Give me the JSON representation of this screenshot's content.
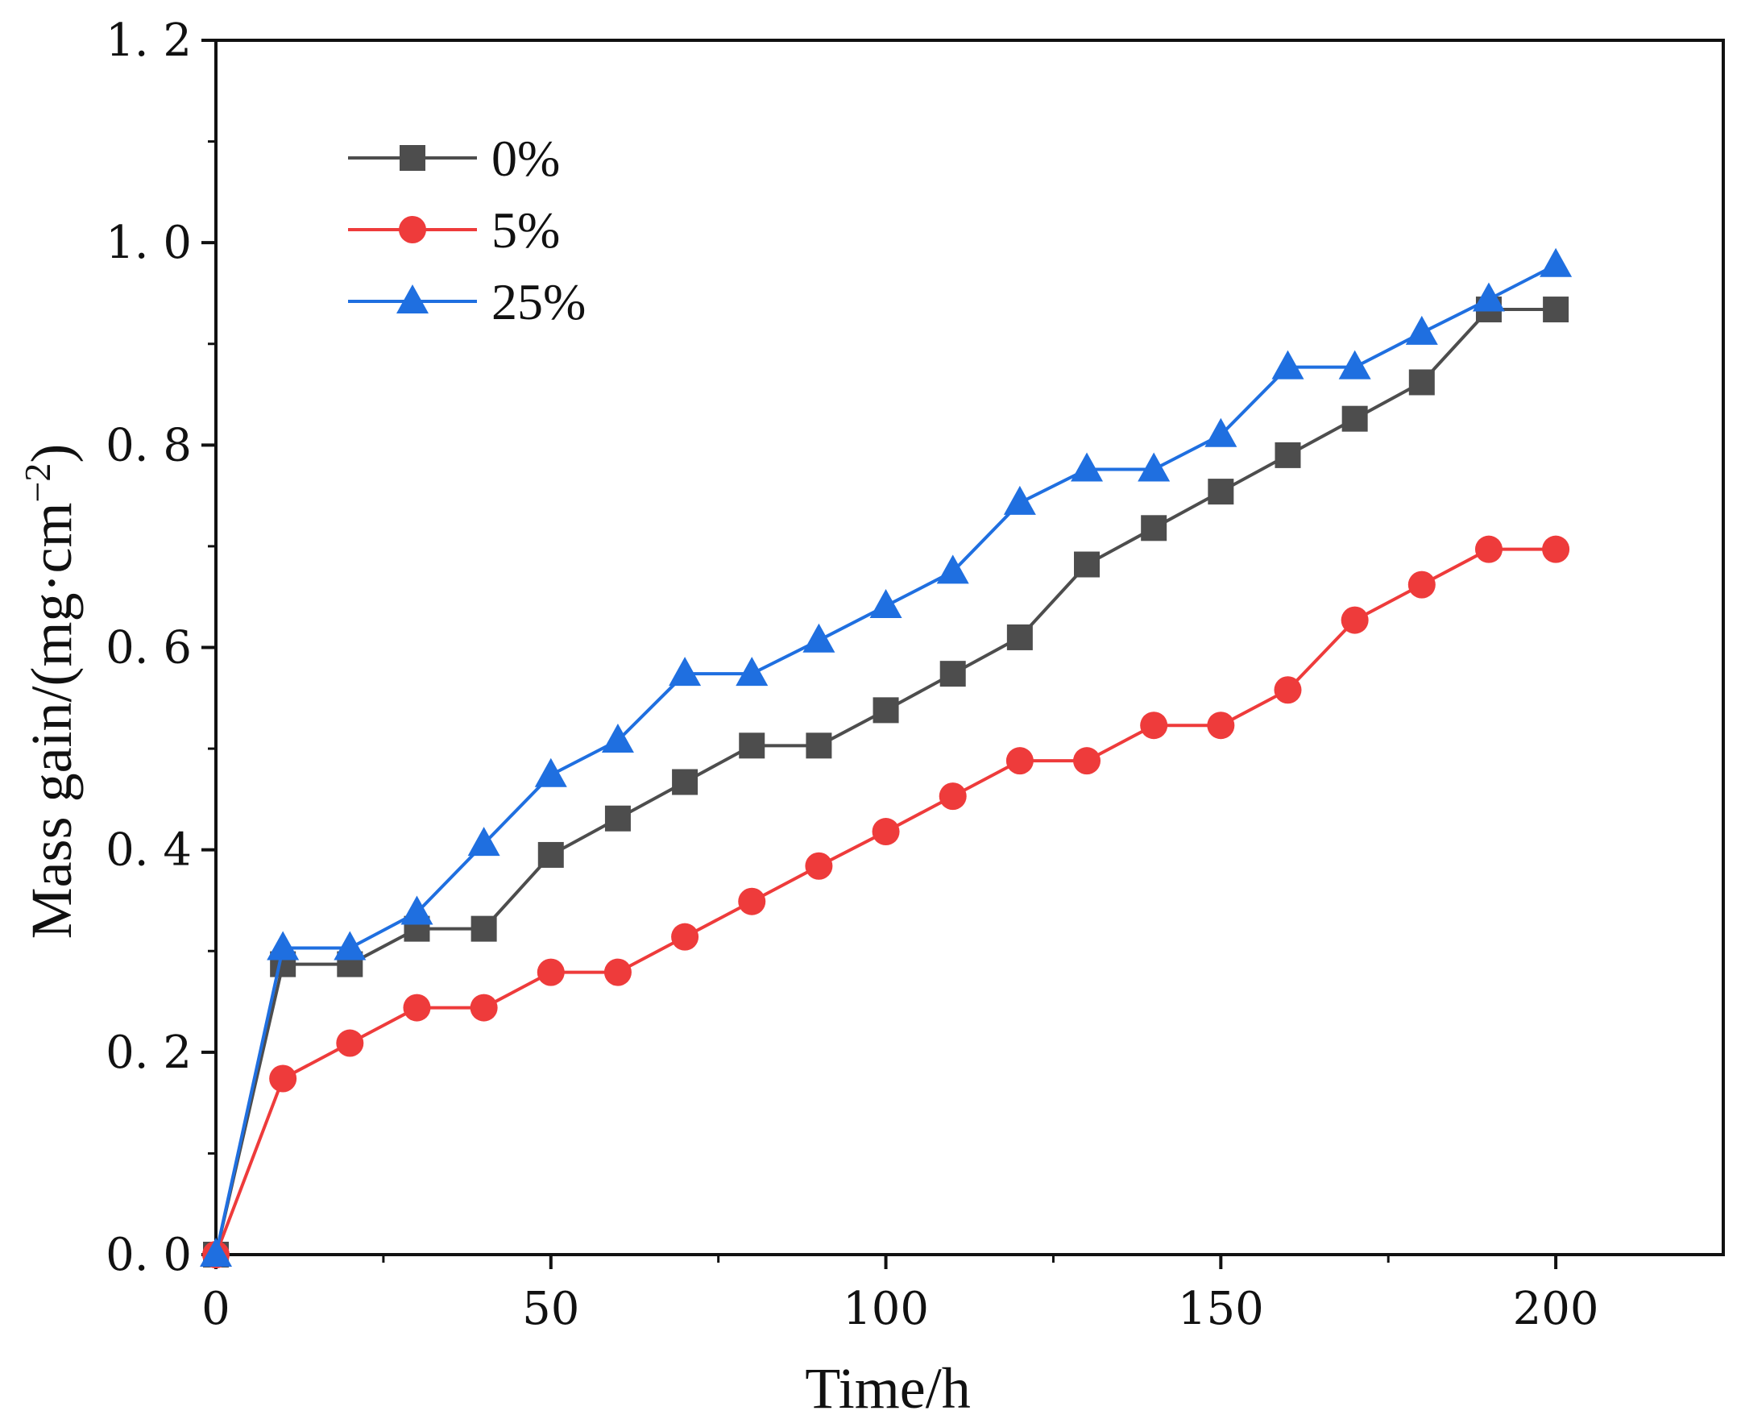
{
  "chart_data": {
    "type": "line",
    "title": "",
    "xlabel": "Time/h",
    "ylabel_main": "Mass gain/(mg·cm",
    "ylabel_sup": "−2",
    "ylabel_close": ")",
    "xlim": [
      0,
      225
    ],
    "ylim": [
      0,
      1.2
    ],
    "x_ticks": [
      0,
      50,
      100,
      150,
      200
    ],
    "x_tick_labels": [
      "0",
      "50",
      "100",
      "150",
      "200"
    ],
    "y_ticks": [
      0,
      0.2,
      0.4,
      0.6,
      0.8,
      1.0,
      1.2
    ],
    "y_tick_labels": [
      "0. 0",
      "0. 2",
      "0. 4",
      "0. 6",
      "0. 8",
      "1. 0",
      "1. 2"
    ],
    "legend_position": "top-left",
    "grid": false,
    "x": [
      0,
      10,
      20,
      30,
      40,
      50,
      60,
      70,
      80,
      90,
      100,
      110,
      120,
      130,
      140,
      150,
      160,
      170,
      180,
      190,
      200
    ],
    "series": [
      {
        "name": "0%",
        "color": "#4d4d4d",
        "marker": "square",
        "values": [
          0,
          0.287,
          0.287,
          0.322,
          0.322,
          0.395,
          0.431,
          0.467,
          0.503,
          0.503,
          0.538,
          0.574,
          0.61,
          0.682,
          0.718,
          0.754,
          0.79,
          0.826,
          0.862,
          0.934,
          0.934
        ]
      },
      {
        "name": "5%",
        "color": "#ee3b3b",
        "marker": "circle",
        "values": [
          0,
          0.174,
          0.209,
          0.244,
          0.244,
          0.279,
          0.279,
          0.314,
          0.349,
          0.384,
          0.418,
          0.453,
          0.488,
          0.488,
          0.523,
          0.523,
          0.558,
          0.627,
          0.662,
          0.697,
          0.697
        ]
      },
      {
        "name": "25%",
        "color": "#1f6fe0",
        "marker": "triangle",
        "values": [
          0,
          0.303,
          0.303,
          0.338,
          0.406,
          0.474,
          0.508,
          0.574,
          0.574,
          0.607,
          0.641,
          0.675,
          0.743,
          0.776,
          0.776,
          0.81,
          0.877,
          0.877,
          0.911,
          0.944,
          0.978
        ]
      }
    ]
  }
}
